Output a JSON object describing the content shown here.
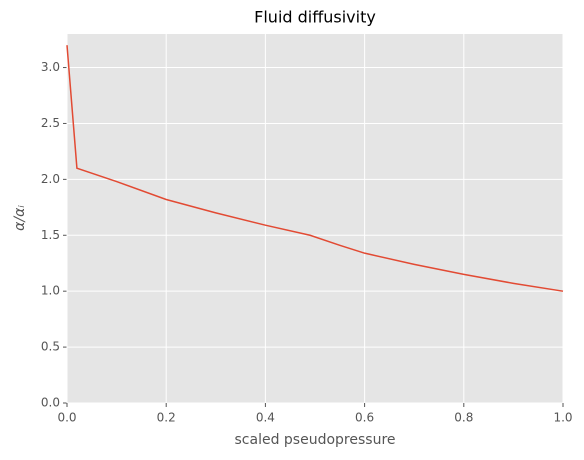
{
  "chart_data": {
    "type": "line",
    "title": "Fluid diffusivity",
    "xlabel": "scaled pseudopressure",
    "ylabel": "α/αᵢ",
    "x": [
      0,
      0.02,
      0.1,
      0.2,
      0.3,
      0.4,
      0.49,
      0.55,
      0.6,
      0.7,
      0.8,
      0.9,
      1.0
    ],
    "series": [
      {
        "color": "#e24a33",
        "values": [
          3.2,
          2.1,
          1.98,
          1.82,
          1.7,
          1.59,
          1.5,
          1.41,
          1.34,
          1.24,
          1.15,
          1.07,
          1.0
        ]
      }
    ],
    "xlim": [
      0,
      1
    ],
    "ylim": [
      0,
      3.3
    ],
    "xticks": [
      {
        "value": 0,
        "label": "0.0"
      },
      0.2,
      0.4,
      0.6,
      0.8,
      {
        "value": 1,
        "label": "1.0"
      }
    ],
    "yticks": [
      {
        "value": 0,
        "label": "0.0"
      },
      0.5,
      {
        "value": 1,
        "label": "1.0"
      },
      1.5,
      {
        "value": 2,
        "label": "2.0"
      },
      2.5,
      {
        "value": 3,
        "label": "3.0"
      }
    ],
    "grid": true
  }
}
